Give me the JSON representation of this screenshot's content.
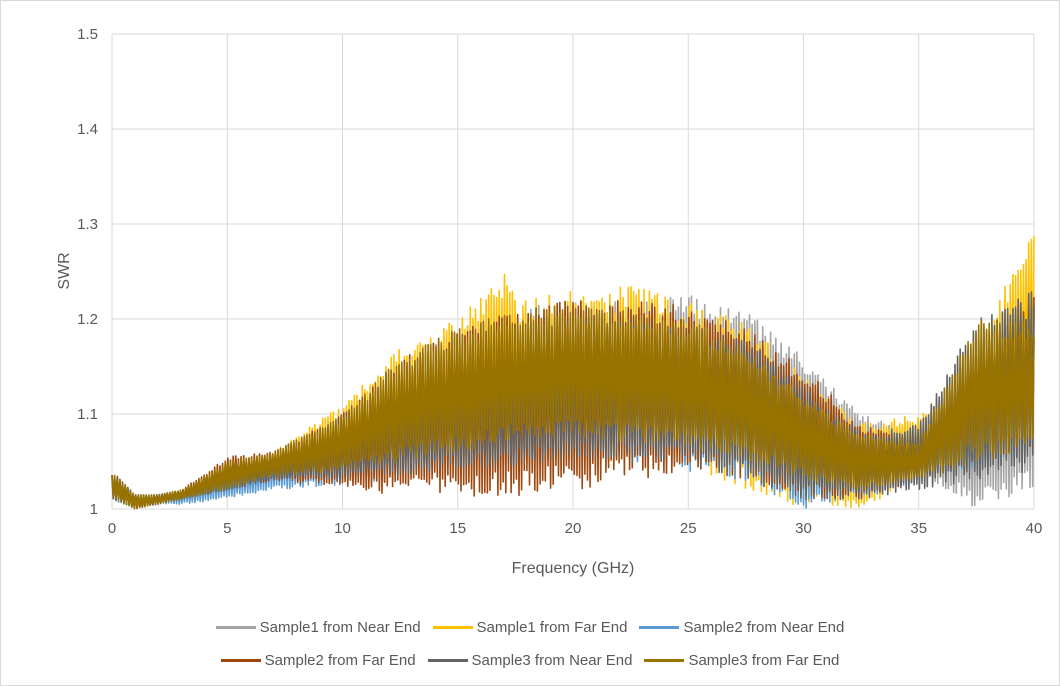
{
  "chart_data": {
    "type": "line",
    "title": "",
    "xlabel": "Frequency (GHz)",
    "ylabel": "SWR",
    "xlim": [
      0,
      40
    ],
    "ylim": [
      1,
      1.5
    ],
    "x_ticks": [
      "0",
      "5",
      "10",
      "15",
      "20",
      "25",
      "30",
      "35",
      "40"
    ],
    "y_ticks": [
      "1",
      "1.1",
      "1.2",
      "1.3",
      "1.4",
      "1.5"
    ],
    "grid": true,
    "legend_position": "bottom",
    "series": [
      {
        "name": "Sample1 from Near End",
        "color": "#a5a5a5",
        "envelope": {
          "x": [
            0,
            1,
            2,
            3,
            5,
            7,
            10,
            12.5,
            15,
            17.5,
            20,
            22.5,
            25,
            27.5,
            30,
            32.5,
            35,
            37.5,
            40
          ],
          "upper": [
            1.04,
            1.015,
            1.015,
            1.02,
            1.045,
            1.06,
            1.1,
            1.15,
            1.19,
            1.21,
            1.22,
            1.22,
            1.225,
            1.21,
            1.16,
            1.1,
            1.08,
            1.14,
            1.22
          ],
          "lower": [
            1.01,
            1.0,
            1.005,
            1.01,
            1.02,
            1.03,
            1.03,
            1.04,
            1.045,
            1.05,
            1.055,
            1.055,
            1.05,
            1.04,
            1.02,
            1.02,
            1.04,
            1.0,
            1.02
          ]
        }
      },
      {
        "name": "Sample1 from Far End",
        "color": "#ffc000",
        "envelope": {
          "x": [
            0,
            1,
            2,
            3,
            5,
            7,
            10,
            12.5,
            15,
            17.2,
            17.5,
            20,
            22.5,
            25,
            27.5,
            30,
            32.5,
            35,
            37.5,
            40
          ],
          "upper": [
            1.04,
            1.015,
            1.015,
            1.02,
            1.05,
            1.06,
            1.11,
            1.17,
            1.2,
            1.255,
            1.22,
            1.23,
            1.235,
            1.22,
            1.2,
            1.14,
            1.09,
            1.1,
            1.16,
            1.31
          ],
          "lower": [
            1.01,
            1.0,
            1.005,
            1.01,
            1.02,
            1.03,
            1.03,
            1.04,
            1.045,
            1.05,
            1.05,
            1.05,
            1.05,
            1.045,
            1.02,
            1.0,
            1.0,
            1.03,
            1.05,
            1.08
          ]
        }
      },
      {
        "name": "Sample2 from Near End",
        "color": "#5b9bd5",
        "envelope": {
          "x": [
            0,
            1,
            2,
            3,
            5,
            7,
            10,
            12.5,
            15,
            17.5,
            20,
            22.5,
            25,
            27.5,
            30,
            32.5,
            35,
            37.5,
            40
          ],
          "upper": [
            1.035,
            1.015,
            1.015,
            1.02,
            1.04,
            1.055,
            1.09,
            1.13,
            1.16,
            1.18,
            1.19,
            1.19,
            1.18,
            1.17,
            1.12,
            1.08,
            1.07,
            1.12,
            1.2
          ],
          "lower": [
            1.01,
            1.0,
            1.005,
            1.005,
            1.01,
            1.02,
            1.025,
            1.03,
            1.04,
            1.045,
            1.05,
            1.05,
            1.04,
            1.03,
            1.0,
            1.01,
            1.03,
            1.04,
            1.06
          ]
        }
      },
      {
        "name": "Sample2 from Far End",
        "color": "#9e480e",
        "envelope": {
          "x": [
            0,
            1,
            2,
            3,
            5,
            7,
            10,
            12.5,
            15,
            17.5,
            20,
            22.5,
            25,
            27.5,
            30,
            32.5,
            35,
            37.5,
            40
          ],
          "upper": [
            1.04,
            1.015,
            1.015,
            1.02,
            1.055,
            1.06,
            1.1,
            1.16,
            1.19,
            1.21,
            1.22,
            1.22,
            1.215,
            1.19,
            1.15,
            1.09,
            1.07,
            1.17,
            1.23
          ],
          "lower": [
            1.01,
            1.0,
            1.005,
            1.01,
            1.02,
            1.03,
            1.02,
            1.015,
            1.015,
            1.01,
            1.02,
            1.03,
            1.04,
            1.03,
            1.01,
            1.01,
            1.03,
            1.05,
            1.06
          ]
        }
      },
      {
        "name": "Sample3 from Near End",
        "color": "#636363",
        "envelope": {
          "x": [
            0,
            1,
            2,
            3,
            5,
            7,
            10,
            12.5,
            15,
            17.5,
            20,
            22.5,
            25,
            27.5,
            30,
            32.5,
            35,
            37.5,
            40
          ],
          "upper": [
            1.04,
            1.015,
            1.015,
            1.02,
            1.045,
            1.055,
            1.095,
            1.14,
            1.17,
            1.19,
            1.2,
            1.2,
            1.19,
            1.18,
            1.13,
            1.08,
            1.09,
            1.2,
            1.23
          ],
          "lower": [
            1.01,
            1.0,
            1.005,
            1.01,
            1.02,
            1.03,
            1.03,
            1.035,
            1.04,
            1.045,
            1.05,
            1.05,
            1.045,
            1.03,
            1.01,
            1.01,
            1.02,
            1.03,
            1.04
          ]
        }
      },
      {
        "name": "Sample3 from Far End",
        "color": "#997300",
        "envelope": {
          "x": [
            0,
            1,
            2,
            3,
            5,
            7,
            10,
            12.5,
            15,
            17.5,
            20,
            22.5,
            25,
            27.5,
            30,
            32.5,
            35,
            37.5,
            40
          ],
          "upper": [
            1.04,
            1.015,
            1.015,
            1.02,
            1.05,
            1.06,
            1.1,
            1.16,
            1.19,
            1.21,
            1.215,
            1.21,
            1.2,
            1.17,
            1.12,
            1.08,
            1.07,
            1.2,
            1.2
          ],
          "lower": [
            1.01,
            1.0,
            1.005,
            1.01,
            1.02,
            1.035,
            1.04,
            1.05,
            1.06,
            1.07,
            1.075,
            1.07,
            1.065,
            1.05,
            1.03,
            1.02,
            1.03,
            1.05,
            1.06
          ]
        }
      }
    ]
  }
}
